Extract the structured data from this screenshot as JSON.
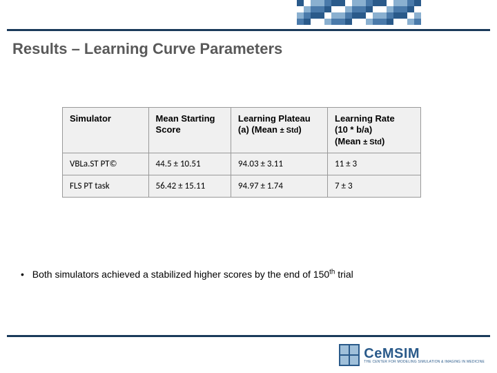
{
  "title": "Results – Learning Curve Parameters",
  "table": {
    "columns": [
      "Simulator",
      "Mean Starting Score",
      "Learning Plateau (a) (Mean <span class=\"small\">± Std</span>)",
      "Learning Rate<br>(10 * b/a)<br>(Mean <span class=\"small\">± Std</span>)"
    ],
    "rows": [
      [
        "VBLa.ST PT©",
        "44.5 ± 10.51",
        "94.03 ± 3.11",
        "11 ± 3"
      ],
      [
        "FLS PT task",
        "56.42 ± 15.11",
        "94.97 ± 1.74",
        "7 ± 3"
      ]
    ],
    "border_color": "#999999",
    "header_bg": "#f0f0f0",
    "cell_bg": "#f0f0f0"
  },
  "bullet": "Both simulators achieved a stabilized higher scores by the end of 150<sup>th</sup> trial",
  "logo": {
    "main": "CeMSIM",
    "sub": "THE CENTER FOR MODELING SIMULATION & IMAGING IN MEDICINE"
  },
  "colors": {
    "rule": "#1a3a5a",
    "title": "#595959",
    "logo": "#2a5a8a"
  }
}
